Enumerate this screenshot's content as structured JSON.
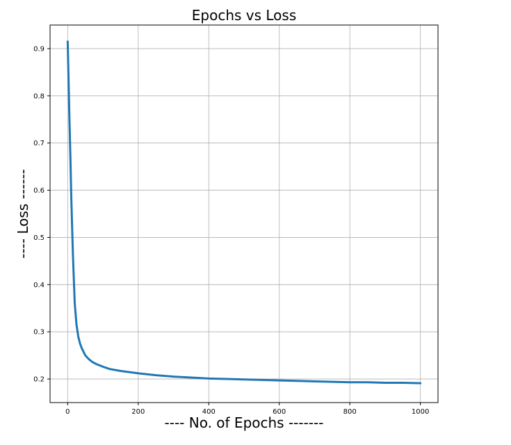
{
  "chart_data": {
    "type": "line",
    "title": "Epochs vs Loss",
    "xlabel": "---- No. of Epochs -------",
    "ylabel": "---- Loss ------",
    "xlim": [
      -50,
      1050
    ],
    "ylim": [
      0.15,
      0.95
    ],
    "xticks": [
      0,
      200,
      400,
      600,
      800,
      1000
    ],
    "yticks": [
      0.2,
      0.3,
      0.4,
      0.5,
      0.6,
      0.7,
      0.8,
      0.9
    ],
    "grid": true,
    "legend": "none",
    "series": [
      {
        "color": "#1f77b4",
        "x": [
          0,
          2,
          5,
          8,
          10,
          13,
          15,
          18,
          20,
          25,
          30,
          35,
          40,
          50,
          60,
          70,
          80,
          100,
          120,
          150,
          200,
          250,
          300,
          350,
          400,
          450,
          500,
          550,
          600,
          650,
          700,
          750,
          800,
          850,
          900,
          950,
          1000
        ],
        "y": [
          0.915,
          0.85,
          0.75,
          0.66,
          0.59,
          0.51,
          0.46,
          0.4,
          0.36,
          0.315,
          0.29,
          0.275,
          0.265,
          0.25,
          0.242,
          0.236,
          0.232,
          0.226,
          0.221,
          0.217,
          0.212,
          0.208,
          0.205,
          0.203,
          0.201,
          0.2,
          0.199,
          0.198,
          0.197,
          0.196,
          0.195,
          0.194,
          0.193,
          0.193,
          0.192,
          0.192,
          0.191
        ]
      }
    ]
  }
}
